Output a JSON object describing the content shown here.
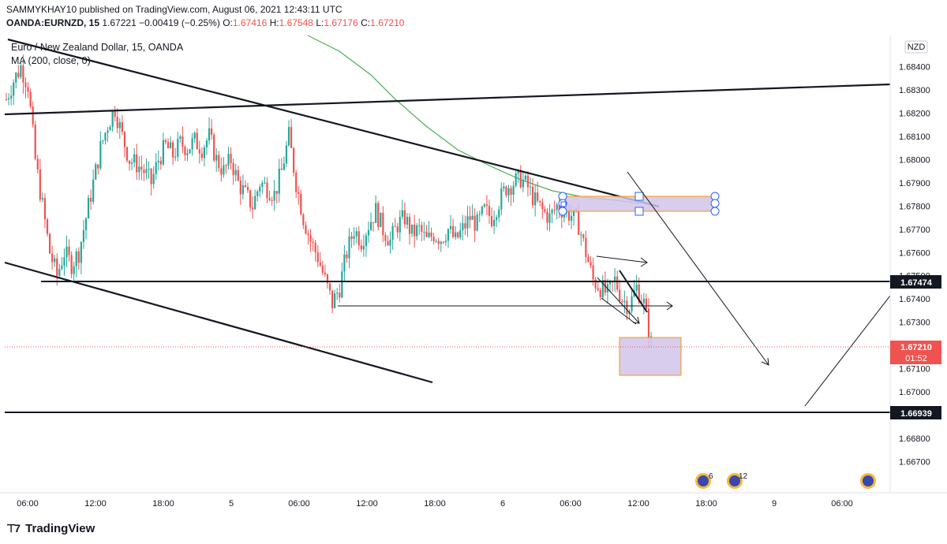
{
  "header": {
    "published_line": "SAMMYKHAY10 published on TradingView.com, August 06, 2021 12:43:11 UTC",
    "symbol": "OANDA:EURNZD, 15",
    "last": "1.67221",
    "change": "−0.00419 (−0.25%)",
    "o_label": "O:",
    "o_value": "1.67416",
    "h_label": "H:",
    "h_value": "1.67548",
    "l_label": "L:",
    "l_value": "1.67176",
    "c_label": "C:",
    "c_value": "1.67210"
  },
  "legend": {
    "title": "Euro / New Zealand Dollar, 15, OANDA",
    "indicator": "MA (200, close, 0)"
  },
  "currency_badge": "NZD",
  "footer": {
    "brand": "TradingView",
    "logo_icon": "tradingview-logo-icon"
  },
  "colors": {
    "up": "#26a69a",
    "down": "#ef5350",
    "ma": "#4caf50",
    "zone_fill": "#d1c4e9",
    "zone_border": "#ff9800",
    "handle": "#2962ff"
  },
  "chart_data": {
    "type": "candlestick",
    "timeframe": "15",
    "ylim": [
      1.6665,
      1.6845
    ],
    "y_ticks": [
      "1.66700",
      "1.66800",
      "1.66900",
      "1.67000",
      "1.67100",
      "1.67200",
      "1.67300",
      "1.67400",
      "1.67500",
      "1.67600",
      "1.67700",
      "1.67800",
      "1.67900",
      "1.68000",
      "1.68100",
      "1.68200",
      "1.68300",
      "1.68400"
    ],
    "x_ticks": [
      "06:00",
      "12:00",
      "18:00",
      "5",
      "06:00",
      "12:00",
      "18:00",
      "6",
      "06:00",
      "12:00",
      "18:00",
      "9",
      "06:00"
    ],
    "current_price": "1.67210",
    "countdown": "01:52",
    "horizontal_levels": [
      {
        "value": 1.67474,
        "label": "1.67474"
      },
      {
        "value": 1.66939,
        "label": "1.66939"
      }
    ],
    "price_path": [
      [
        0,
        1.6826
      ],
      [
        1,
        1.6834
      ],
      [
        2,
        1.684
      ],
      [
        3,
        1.6832
      ],
      [
        4,
        1.68
      ],
      [
        5,
        1.678
      ],
      [
        6,
        1.676
      ],
      [
        7,
        1.675
      ],
      [
        8,
        1.676
      ],
      [
        9,
        1.6755
      ],
      [
        10,
        1.676
      ],
      [
        11,
        1.6775
      ],
      [
        12,
        1.679
      ],
      [
        13,
        1.6805
      ],
      [
        14,
        1.6815
      ],
      [
        15,
        1.6822
      ],
      [
        16,
        1.681
      ],
      [
        17,
        1.68
      ],
      [
        18,
        1.6798
      ],
      [
        19,
        1.6795
      ],
      [
        20,
        1.679
      ],
      [
        21,
        1.68
      ],
      [
        22,
        1.6806
      ],
      [
        23,
        1.6802
      ],
      [
        24,
        1.6807
      ],
      [
        25,
        1.6805
      ],
      [
        26,
        1.6808
      ],
      [
        27,
        1.6805
      ],
      [
        28,
        1.681
      ],
      [
        29,
        1.68
      ],
      [
        30,
        1.6795
      ],
      [
        31,
        1.68
      ],
      [
        32,
        1.679
      ],
      [
        33,
        1.6785
      ],
      [
        34,
        1.678
      ],
      [
        35,
        1.679
      ],
      [
        36,
        1.6788
      ],
      [
        37,
        1.6785
      ],
      [
        38,
        1.6795
      ],
      [
        39,
        1.681
      ],
      [
        40,
        1.679
      ],
      [
        41,
        1.6775
      ],
      [
        42,
        1.6765
      ],
      [
        43,
        1.6758
      ],
      [
        44,
        1.6748
      ],
      [
        45,
        1.6738
      ],
      [
        46,
        1.6745
      ],
      [
        47,
        1.676
      ],
      [
        48,
        1.677
      ],
      [
        49,
        1.6765
      ],
      [
        50,
        1.6772
      ],
      [
        51,
        1.6778
      ],
      [
        52,
        1.677
      ],
      [
        53,
        1.6765
      ],
      [
        54,
        1.6772
      ],
      [
        55,
        1.6775
      ],
      [
        56,
        1.6768
      ],
      [
        57,
        1.677
      ],
      [
        58,
        1.6765
      ],
      [
        59,
        1.6768
      ],
      [
        60,
        1.6766
      ],
      [
        61,
        1.677
      ],
      [
        62,
        1.6765
      ],
      [
        63,
        1.677
      ],
      [
        64,
        1.6775
      ],
      [
        65,
        1.6772
      ],
      [
        66,
        1.6778
      ],
      [
        67,
        1.6775
      ],
      [
        68,
        1.6782
      ],
      [
        69,
        1.6788
      ],
      [
        70,
        1.679
      ],
      [
        71,
        1.6792
      ],
      [
        72,
        1.6788
      ],
      [
        73,
        1.6782
      ],
      [
        74,
        1.6778
      ],
      [
        75,
        1.6775
      ],
      [
        76,
        1.678
      ],
      [
        77,
        1.6778
      ],
      [
        78,
        1.6776
      ],
      [
        79,
        1.6772
      ],
      [
        80,
        1.676
      ],
      [
        81,
        1.6748
      ],
      [
        82,
        1.6745
      ],
      [
        83,
        1.6742
      ],
      [
        84,
        1.6748
      ],
      [
        85,
        1.674
      ],
      [
        86,
        1.6737
      ],
      [
        87,
        1.6745
      ],
      [
        88,
        1.6738
      ],
      [
        89,
        1.6721
      ]
    ]
  }
}
